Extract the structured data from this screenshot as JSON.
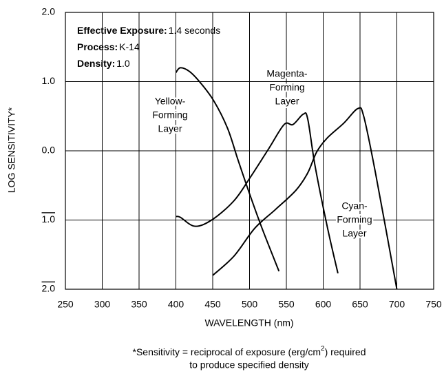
{
  "chart_data": {
    "type": "line",
    "info": [
      {
        "label": "Effective Exposure:",
        "value": "1.4 seconds"
      },
      {
        "label": "Process:",
        "value": "K-14"
      },
      {
        "label": "Density:",
        "value": "1.0"
      }
    ],
    "xlabel": "WAVELENGTH (nm)",
    "ylabel": "LOG SENSITIVITY*",
    "xlim": [
      250,
      750
    ],
    "xticks": [
      250,
      300,
      350,
      400,
      450,
      500,
      550,
      600,
      650,
      700,
      750
    ],
    "ylim": [
      -2,
      2
    ],
    "yticks": [
      {
        "value": -2,
        "label": "2.0"
      },
      {
        "value": -1,
        "label": "1.0"
      },
      {
        "value": 0,
        "label": "0.0"
      },
      {
        "value": 1,
        "label": "1.0"
      },
      {
        "value": 2,
        "label": "2.0"
      }
    ],
    "grid": true,
    "series": [
      {
        "name": "Yellow-Forming Layer",
        "color": "#000000",
        "x": [
          400,
          406,
          418,
          432,
          451,
          470,
          484,
          500,
          517,
          540
        ],
        "values": [
          1.13,
          1.2,
          1.15,
          1.0,
          0.73,
          0.33,
          -0.12,
          -0.62,
          -1.12,
          -1.74
        ]
      },
      {
        "name": "Magenta-Forming Layer",
        "color": "#000000",
        "x": [
          400,
          406,
          426,
          450,
          479,
          500,
          526,
          547,
          559,
          573,
          579,
          589,
          606,
          620
        ],
        "values": [
          -0.95,
          -0.96,
          -1.09,
          -0.99,
          -0.72,
          -0.4,
          0.03,
          0.38,
          0.38,
          0.53,
          0.46,
          -0.22,
          -1.12,
          -1.77
        ]
      },
      {
        "name": "Cyan-Forming Layer",
        "color": "#000000",
        "x": [
          450,
          479,
          507,
          535,
          563,
          579,
          591,
          605,
          628,
          647,
          655,
          671,
          700
        ],
        "values": [
          -1.8,
          -1.52,
          -1.12,
          -0.85,
          -0.57,
          -0.32,
          -0.02,
          0.18,
          0.4,
          0.61,
          0.5,
          -0.32,
          -2.0
        ]
      }
    ],
    "annotations": [
      {
        "lines": [
          "Yellow-",
          "Forming",
          "Layer"
        ]
      },
      {
        "lines": [
          "Magenta-",
          "Forming",
          "Layer"
        ]
      },
      {
        "lines": [
          "Cyan-",
          "Forming",
          "Layer"
        ]
      }
    ],
    "footnote": {
      "line1": "*Sensitivity = reciprocal of exposure (erg/cm",
      "superscript": "2",
      "line1_end": ") required",
      "line2": "to produce specified density"
    }
  }
}
